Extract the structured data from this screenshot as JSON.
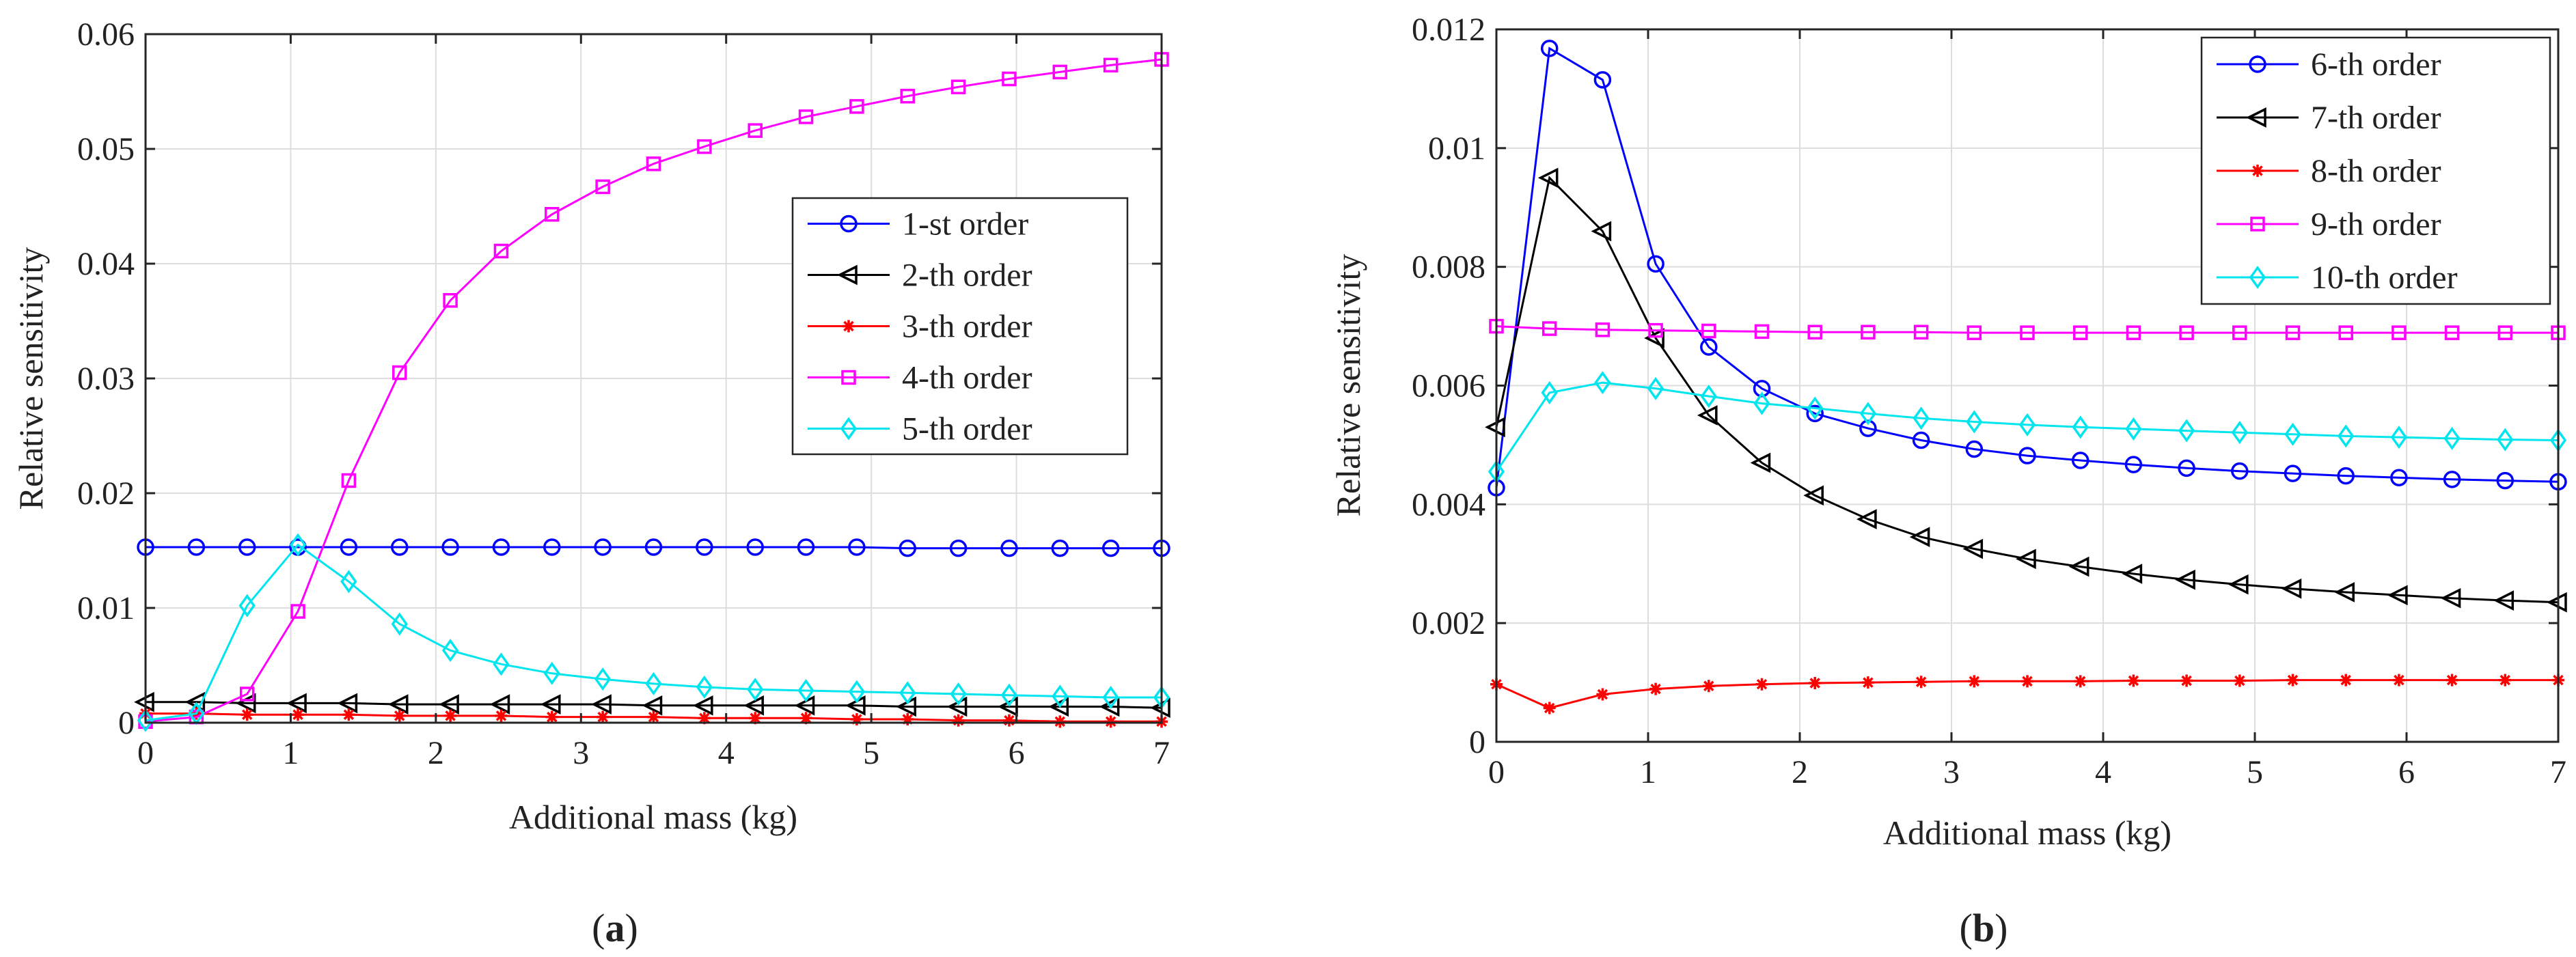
{
  "chart_data": [
    {
      "type": "line",
      "panel_label": "(a)",
      "panel_letter": "a",
      "xlabel": "Additional mass (kg)",
      "ylabel": "Relative sensitivity",
      "xlim": [
        0,
        7
      ],
      "ylim": [
        0,
        0.06
      ],
      "xticks": [
        0,
        1,
        2,
        3,
        4,
        5,
        6,
        7
      ],
      "xtick_labels": [
        "0",
        "1",
        "2",
        "3",
        "4",
        "5",
        "6",
        "7"
      ],
      "yticks": [
        0,
        0.01,
        0.02,
        0.03,
        0.04,
        0.05,
        0.06
      ],
      "ytick_labels": [
        "0",
        "0.01",
        "0.02",
        "0.03",
        "0.04",
        "0.05",
        "0.06"
      ],
      "grid": true,
      "legend_position": "center-right",
      "x": [
        0,
        0.35,
        0.7,
        1.05,
        1.4,
        1.75,
        2.1,
        2.45,
        2.8,
        3.15,
        3.5,
        3.85,
        4.2,
        4.55,
        4.9,
        5.25,
        5.6,
        5.95,
        6.3,
        6.65,
        7.0
      ],
      "series": [
        {
          "name": "1-st order",
          "color": "#0000ff",
          "marker": "circle",
          "values": [
            0.0153,
            0.0153,
            0.0153,
            0.0153,
            0.0153,
            0.0153,
            0.0153,
            0.0153,
            0.0153,
            0.0153,
            0.0153,
            0.0153,
            0.0153,
            0.0153,
            0.0153,
            0.0152,
            0.0152,
            0.0152,
            0.0152,
            0.0152,
            0.0152
          ]
        },
        {
          "name": "2-th order",
          "color": "#000000",
          "marker": "triangle-left",
          "values": [
            0.0018,
            0.0018,
            0.0017,
            0.0017,
            0.0017,
            0.0016,
            0.0016,
            0.0016,
            0.0016,
            0.0016,
            0.0015,
            0.0015,
            0.0015,
            0.0015,
            0.0015,
            0.0014,
            0.0014,
            0.0014,
            0.0014,
            0.0014,
            0.0013
          ]
        },
        {
          "name": "3-th order",
          "color": "#ff0000",
          "marker": "asterisk",
          "values": [
            0.0008,
            0.0008,
            0.0007,
            0.0007,
            0.0007,
            0.0006,
            0.0006,
            0.0006,
            0.0005,
            0.0005,
            0.0005,
            0.0004,
            0.0004,
            0.0004,
            0.0003,
            0.0003,
            0.0002,
            0.0002,
            0.0001,
            0.0001,
            0.0001
          ]
        },
        {
          "name": "4-th order",
          "color": "#ff00ff",
          "marker": "square",
          "values": [
            0.0001,
            0.0005,
            0.0025,
            0.0097,
            0.0211,
            0.0305,
            0.0368,
            0.0411,
            0.0443,
            0.0467,
            0.0487,
            0.0502,
            0.0516,
            0.0528,
            0.0537,
            0.0546,
            0.0554,
            0.0561,
            0.0567,
            0.0573,
            0.0578
          ]
        },
        {
          "name": "5-th order",
          "color": "#00e5ee",
          "marker": "diamond",
          "values": [
            0.0002,
            0.0008,
            0.0102,
            0.0155,
            0.0123,
            0.0086,
            0.0063,
            0.0051,
            0.0043,
            0.0038,
            0.0034,
            0.0031,
            0.0029,
            0.0028,
            0.0027,
            0.0026,
            0.0025,
            0.0024,
            0.0023,
            0.0022,
            0.0022
          ]
        }
      ]
    },
    {
      "type": "line",
      "panel_label": "(b)",
      "panel_letter": "b",
      "xlabel": "Additional mass (kg)",
      "ylabel": "Relative sensitivity",
      "xlim": [
        0,
        7
      ],
      "ylim": [
        0,
        0.012
      ],
      "xticks": [
        0,
        1,
        2,
        3,
        4,
        5,
        6,
        7
      ],
      "xtick_labels": [
        "0",
        "1",
        "2",
        "3",
        "4",
        "5",
        "6",
        "7"
      ],
      "yticks": [
        0,
        0.002,
        0.004,
        0.006,
        0.008,
        0.01,
        0.012
      ],
      "ytick_labels": [
        "0",
        "0.002",
        "0.004",
        "0.006",
        "0.008",
        "0.01",
        "0.012"
      ],
      "grid": true,
      "legend_position": "top-right",
      "x": [
        0,
        0.35,
        0.7,
        1.05,
        1.4,
        1.75,
        2.1,
        2.45,
        2.8,
        3.15,
        3.5,
        3.85,
        4.2,
        4.55,
        4.9,
        5.25,
        5.6,
        5.95,
        6.3,
        6.65,
        7.0
      ],
      "series": [
        {
          "name": "6-th order",
          "color": "#0000ff",
          "marker": "circle",
          "values": [
            0.00428,
            0.01168,
            0.01115,
            0.00805,
            0.00665,
            0.00595,
            0.00553,
            0.00528,
            0.00508,
            0.00493,
            0.00482,
            0.00474,
            0.00467,
            0.00461,
            0.00456,
            0.00452,
            0.00448,
            0.00445,
            0.00442,
            0.0044,
            0.00438
          ]
        },
        {
          "name": "7-th order",
          "color": "#000000",
          "marker": "triangle-left",
          "values": [
            0.0053,
            0.0095,
            0.0086,
            0.0068,
            0.0055,
            0.0047,
            0.00415,
            0.00375,
            0.00345,
            0.00325,
            0.00308,
            0.00295,
            0.00283,
            0.00273,
            0.00265,
            0.00258,
            0.00252,
            0.00247,
            0.00242,
            0.00238,
            0.00235
          ]
        },
        {
          "name": "8-th order",
          "color": "#ff0000",
          "marker": "asterisk",
          "values": [
            0.00097,
            0.00057,
            0.0008,
            0.00089,
            0.00094,
            0.00097,
            0.00099,
            0.001,
            0.00101,
            0.00102,
            0.00102,
            0.00102,
            0.00103,
            0.00103,
            0.00103,
            0.00104,
            0.00104,
            0.00104,
            0.00104,
            0.00104,
            0.00104
          ]
        },
        {
          "name": "9-th order",
          "color": "#ff00ff",
          "marker": "square",
          "values": [
            0.007,
            0.00696,
            0.00694,
            0.00693,
            0.00692,
            0.00691,
            0.0069,
            0.0069,
            0.0069,
            0.00689,
            0.00689,
            0.00689,
            0.00689,
            0.00689,
            0.00689,
            0.00689,
            0.00689,
            0.00689,
            0.00689,
            0.00689,
            0.00689
          ]
        },
        {
          "name": "10-th order",
          "color": "#00e5ee",
          "marker": "diamond",
          "values": [
            0.00455,
            0.00588,
            0.00605,
            0.00595,
            0.00582,
            0.0057,
            0.00562,
            0.00553,
            0.00545,
            0.00539,
            0.00534,
            0.0053,
            0.00527,
            0.00524,
            0.00521,
            0.00518,
            0.00515,
            0.00513,
            0.00511,
            0.00509,
            0.00508
          ]
        }
      ]
    }
  ]
}
